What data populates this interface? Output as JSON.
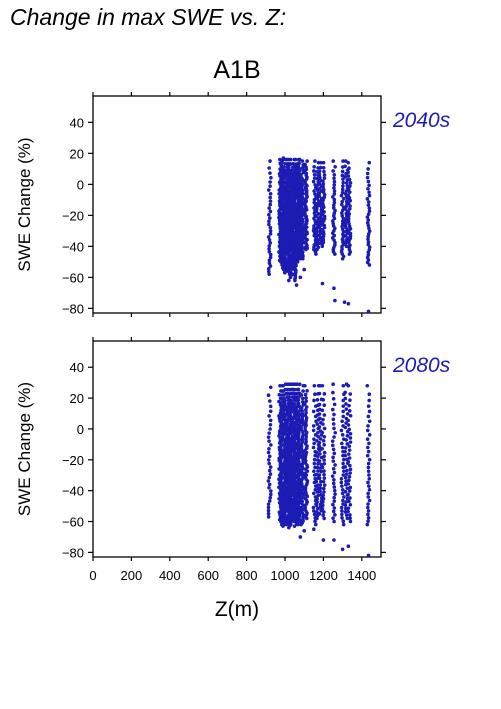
{
  "page": {
    "title": "Change in max SWE vs. Z:",
    "scenario": "A1B"
  },
  "chart_data": [
    {
      "type": "scatter",
      "period_label": "2040s",
      "xlabel": "",
      "ylabel": "SWE Change (%)",
      "xlim": [
        0,
        1500
      ],
      "ylim": [
        -83,
        57
      ],
      "yticks": [
        40,
        20,
        0,
        -20,
        -40,
        -60,
        -80
      ],
      "xticks_shown": false,
      "marker_color": "#1c1cb4",
      "columns": [
        {
          "x": 920,
          "y_min": -58,
          "y_max": 15
        },
        {
          "x": 975,
          "y_min": -50,
          "y_max": 16
        },
        {
          "x": 985,
          "y_min": -52,
          "y_max": 17
        },
        {
          "x": 995,
          "y_min": -55,
          "y_max": 16
        },
        {
          "x": 1005,
          "y_min": -57,
          "y_max": 16
        },
        {
          "x": 1015,
          "y_min": -56,
          "y_max": 16
        },
        {
          "x": 1025,
          "y_min": -58,
          "y_max": 16
        },
        {
          "x": 1035,
          "y_min": -60,
          "y_max": 16
        },
        {
          "x": 1045,
          "y_min": -55,
          "y_max": 16
        },
        {
          "x": 1055,
          "y_min": -62,
          "y_max": 16
        },
        {
          "x": 1065,
          "y_min": -50,
          "y_max": 16
        },
        {
          "x": 1075,
          "y_min": -48,
          "y_max": 16
        },
        {
          "x": 1090,
          "y_min": -48,
          "y_max": 15
        },
        {
          "x": 1110,
          "y_min": -42,
          "y_max": 15
        },
        {
          "x": 1155,
          "y_min": -45,
          "y_max": 15
        },
        {
          "x": 1170,
          "y_min": -42,
          "y_max": 14
        },
        {
          "x": 1185,
          "y_min": -38,
          "y_max": 14
        },
        {
          "x": 1200,
          "y_min": -40,
          "y_max": 14
        },
        {
          "x": 1255,
          "y_min": -45,
          "y_max": 15
        },
        {
          "x": 1300,
          "y_min": -48,
          "y_max": 15
        },
        {
          "x": 1320,
          "y_min": -40,
          "y_max": 15
        },
        {
          "x": 1335,
          "y_min": -45,
          "y_max": 14
        },
        {
          "x": 1435,
          "y_min": -52,
          "y_max": 14
        }
      ],
      "outliers": [
        {
          "x": 1020,
          "y": -62
        },
        {
          "x": 1040,
          "y": -58
        },
        {
          "x": 1060,
          "y": -65
        },
        {
          "x": 1080,
          "y": -60
        },
        {
          "x": 1100,
          "y": -55
        },
        {
          "x": 1195,
          "y": -64
        },
        {
          "x": 1255,
          "y": -67
        },
        {
          "x": 1260,
          "y": -75
        },
        {
          "x": 1310,
          "y": -76
        },
        {
          "x": 1330,
          "y": -77
        },
        {
          "x": 1435,
          "y": -82
        }
      ]
    },
    {
      "type": "scatter",
      "period_label": "2080s",
      "xlabel": "Z(m)",
      "ylabel": "SWE Change (%)",
      "xlim": [
        0,
        1500
      ],
      "ylim": [
        -83,
        57
      ],
      "yticks": [
        40,
        20,
        0,
        -20,
        -40,
        -60,
        -80
      ],
      "xticks": [
        0,
        200,
        400,
        600,
        800,
        1000,
        1200,
        1400
      ],
      "xticks_shown": true,
      "marker_color": "#1c1cb4",
      "columns": [
        {
          "x": 920,
          "y_min": -57,
          "y_max": 27
        },
        {
          "x": 975,
          "y_min": -60,
          "y_max": 28
        },
        {
          "x": 985,
          "y_min": -62,
          "y_max": 28
        },
        {
          "x": 995,
          "y_min": -63,
          "y_max": 28
        },
        {
          "x": 1005,
          "y_min": -62,
          "y_max": 29
        },
        {
          "x": 1015,
          "y_min": -61,
          "y_max": 29
        },
        {
          "x": 1025,
          "y_min": -64,
          "y_max": 29
        },
        {
          "x": 1035,
          "y_min": -62,
          "y_max": 29
        },
        {
          "x": 1045,
          "y_min": -60,
          "y_max": 29
        },
        {
          "x": 1055,
          "y_min": -63,
          "y_max": 29
        },
        {
          "x": 1065,
          "y_min": -62,
          "y_max": 29
        },
        {
          "x": 1075,
          "y_min": -60,
          "y_max": 29
        },
        {
          "x": 1090,
          "y_min": -62,
          "y_max": 28
        },
        {
          "x": 1110,
          "y_min": -58,
          "y_max": 28
        },
        {
          "x": 1155,
          "y_min": -62,
          "y_max": 28
        },
        {
          "x": 1170,
          "y_min": -58,
          "y_max": 28
        },
        {
          "x": 1185,
          "y_min": -55,
          "y_max": 28
        },
        {
          "x": 1200,
          "y_min": -58,
          "y_max": 28
        },
        {
          "x": 1255,
          "y_min": -60,
          "y_max": 29
        },
        {
          "x": 1300,
          "y_min": -62,
          "y_max": 28
        },
        {
          "x": 1320,
          "y_min": -58,
          "y_max": 29
        },
        {
          "x": 1335,
          "y_min": -60,
          "y_max": 28
        },
        {
          "x": 1435,
          "y_min": -62,
          "y_max": 28
        }
      ],
      "outliers": [
        {
          "x": 1080,
          "y": -70
        },
        {
          "x": 1100,
          "y": -66
        },
        {
          "x": 1150,
          "y": -65
        },
        {
          "x": 1200,
          "y": -72
        },
        {
          "x": 1255,
          "y": -72
        },
        {
          "x": 1300,
          "y": -78
        },
        {
          "x": 1330,
          "y": -76
        },
        {
          "x": 1435,
          "y": -82
        }
      ]
    }
  ]
}
